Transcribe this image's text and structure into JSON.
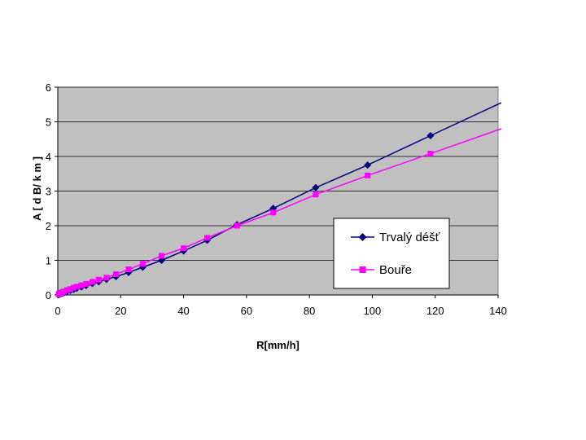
{
  "chart_data": {
    "type": "line",
    "xlabel": "R[mm/h]",
    "ylabel": "A  [ d B/ k m ]",
    "xlim": [
      0,
      140
    ],
    "ylim": [
      0,
      6
    ],
    "x_ticks": [
      0,
      20,
      40,
      60,
      80,
      100,
      120,
      140
    ],
    "y_ticks": [
      0,
      1,
      2,
      3,
      4,
      5,
      6
    ],
    "grid": "horizontal",
    "legend_position": "inside-right",
    "plot_background": "#c0c0c0",
    "series": [
      {
        "name": "Trvalý déšť",
        "color": "#000080",
        "marker": "diamond",
        "x": [
          0.25,
          0.5,
          1,
          1.5,
          2,
          3,
          4,
          5,
          6,
          7.5,
          9,
          11,
          13,
          15.5,
          18.5,
          22.5,
          27,
          33,
          40,
          47.5,
          57,
          68.5,
          82,
          98.5,
          118.5
        ],
        "y": [
          0.01,
          0.02,
          0.03,
          0.05,
          0.07,
          0.1,
          0.13,
          0.16,
          0.19,
          0.23,
          0.27,
          0.33,
          0.38,
          0.45,
          0.53,
          0.65,
          0.8,
          1.0,
          1.27,
          1.58,
          2.03,
          2.5,
          3.1,
          3.75,
          4.6
        ],
        "line_end": [
          141,
          5.55
        ]
      },
      {
        "name": "Bouře",
        "color": "#ff00ff",
        "marker": "square",
        "x": [
          0.25,
          0.5,
          1,
          1.5,
          2,
          3,
          4,
          5,
          6,
          7.5,
          9,
          11,
          13,
          15.5,
          18.5,
          22.5,
          27,
          33,
          40,
          47.5,
          57,
          68.5,
          82,
          98.5,
          118.5
        ],
        "y": [
          0.02,
          0.04,
          0.06,
          0.08,
          0.1,
          0.14,
          0.17,
          0.21,
          0.24,
          0.28,
          0.32,
          0.38,
          0.44,
          0.5,
          0.6,
          0.74,
          0.9,
          1.13,
          1.35,
          1.65,
          2.0,
          2.38,
          2.9,
          3.45,
          4.08
        ],
        "line_end": [
          141,
          4.8
        ]
      }
    ]
  }
}
